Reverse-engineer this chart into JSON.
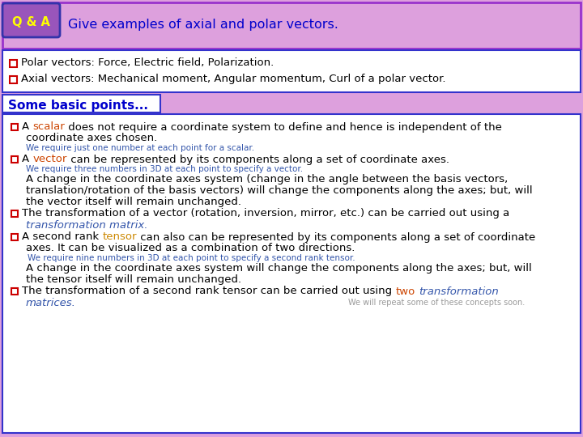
{
  "bg_color": "#dda0dd",
  "qa_label": "Q & A",
  "qa_label_color": "#ffff00",
  "qa_box_bg": "#9955bb",
  "qa_box_border": "#3333aa",
  "header_text": "Give examples of axial and polar vectors.",
  "header_text_color": "#0000cc",
  "header_border": "#9933cc",
  "section1_border": "#3333cc",
  "bullet1_text": "Polar vectors: Force, Electric field, Polarization.",
  "bullet2_text": "Axial vectors: Mechanical moment, Angular momentum, Curl of a polar vector.",
  "section2_header": "Some basic points...",
  "section2_header_color": "#0000cc",
  "section2_border": "#3333cc",
  "bullet_box_color": "#cc0000",
  "scalar_color": "#cc4400",
  "tensor_color": "#cc8800",
  "two_color": "#cc4400",
  "italic_color": "#3355aa",
  "small_color": "#3355aa",
  "gray_color": "#999999"
}
